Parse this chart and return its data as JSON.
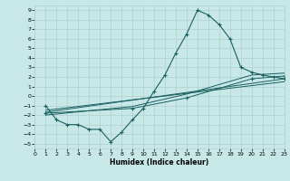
{
  "xlabel": "Humidex (Indice chaleur)",
  "xlim": [
    0,
    23
  ],
  "ylim": [
    -5.5,
    9.5
  ],
  "xticks": [
    0,
    1,
    2,
    3,
    4,
    5,
    6,
    7,
    8,
    9,
    10,
    11,
    12,
    13,
    14,
    15,
    16,
    17,
    18,
    19,
    20,
    21,
    22,
    23
  ],
  "yticks": [
    -5,
    -4,
    -3,
    -2,
    -1,
    0,
    1,
    2,
    3,
    4,
    5,
    6,
    7,
    8,
    9
  ],
  "bg_color": "#c8e8e8",
  "grid_color": "#b0d0d0",
  "line_color": "#1a6060",
  "curve_x": [
    1,
    2,
    3,
    4,
    5,
    6,
    7,
    8,
    9,
    10,
    11,
    12,
    13,
    14,
    15,
    16,
    17,
    18,
    19,
    20,
    21,
    22,
    23
  ],
  "curve_y": [
    -1.0,
    -2.5,
    -3.0,
    -3.0,
    -3.5,
    -3.5,
    -4.8,
    -3.8,
    -2.5,
    -1.3,
    0.5,
    2.2,
    4.5,
    6.5,
    9.0,
    8.5,
    7.5,
    6.0,
    3.0,
    2.5,
    2.2,
    2.0,
    1.8
  ],
  "line2_x": [
    1,
    23
  ],
  "line2_y": [
    -1.5,
    1.5
  ],
  "line3_x": [
    1,
    23
  ],
  "line3_y": [
    -1.7,
    1.8
  ],
  "line4_x": [
    1,
    9,
    14,
    20,
    23
  ],
  "line4_y": [
    -1.8,
    -1.3,
    -0.2,
    1.8,
    2.1
  ],
  "line5_x": [
    1,
    9,
    14,
    20,
    23
  ],
  "line5_y": [
    -2.0,
    -1.1,
    0.2,
    2.2,
    2.4
  ]
}
